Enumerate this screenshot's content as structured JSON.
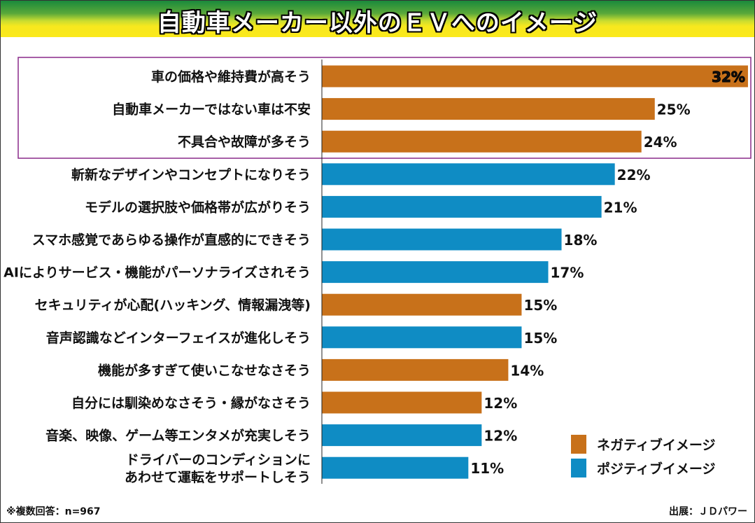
{
  "chart_data": {
    "type": "bar",
    "orientation": "horizontal",
    "title": "自動車メーカー以外のＥＶへのイメージ",
    "categories": [
      "車の価格や維持費が高そう",
      "自動車メーカーではない車は不安",
      "不具合や故障が多そう",
      "斬新なデザインやコンセプトになりそう",
      "モデルの選択肢や価格帯が広がりそう",
      "スマホ感覚であらゆる操作が直感的にできそう",
      "AIによりサービス・機能がパーソナライズされそう",
      "セキュリティが心配(ハッキング、情報漏洩等)",
      "音声認識などインターフェイスが進化しそう",
      "機能が多すぎて使いこなせなさそう",
      "自分には馴染めなさそう・縁がなさそう",
      "音楽、映像、ゲーム等エンタメが充実しそう",
      "ドライバーのコンディションに\nあわせて運転をサポートしそう"
    ],
    "values": [
      32,
      25,
      24,
      22,
      21,
      18,
      17,
      15,
      15,
      14,
      12,
      12,
      11
    ],
    "value_labels": [
      "32%",
      "25%",
      "24%",
      "22%",
      "21%",
      "18%",
      "17%",
      "15%",
      "15%",
      "14%",
      "12%",
      "12%",
      "11%"
    ],
    "bar_types": [
      "negative",
      "negative",
      "negative",
      "positive",
      "positive",
      "positive",
      "positive",
      "negative",
      "positive",
      "negative",
      "negative",
      "positive",
      "positive"
    ],
    "legend": [
      {
        "key": "negative",
        "name": "ネガティブイメージ",
        "color": "#c8711a"
      },
      {
        "key": "positive",
        "name": "ポジティブイメージ",
        "color": "#0f8cc4"
      }
    ],
    "legend_position": "bottom-right",
    "highlight_box_color": "#8a2a8a",
    "grid": false
  },
  "footer": {
    "note": "※複数回答：n=967",
    "source": "出展：ＪＤパワー"
  }
}
